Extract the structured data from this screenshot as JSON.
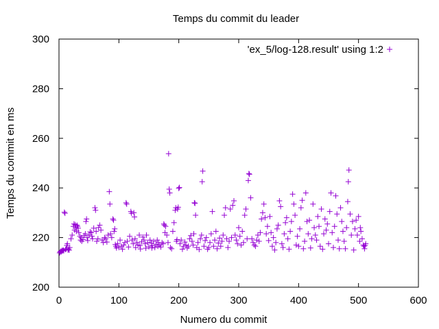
{
  "chart_data": {
    "type": "scatter",
    "title": "Temps du commit du leader",
    "xlabel": "Numero du commit",
    "ylabel": "Temps du commit en ms",
    "xlim": [
      0,
      600
    ],
    "ylim": [
      200,
      300
    ],
    "xticks": [
      0,
      100,
      200,
      300,
      400,
      500,
      600
    ],
    "yticks": [
      200,
      220,
      240,
      260,
      280,
      300
    ],
    "grid": false,
    "legend_position": "top-right",
    "marker": "plus",
    "series": [
      {
        "name": "'ex_5/log-128.result' using 1:2",
        "color": "#9400d3",
        "points": [
          [
            1,
            213.8
          ],
          [
            2,
            214.2
          ],
          [
            3,
            214.5
          ],
          [
            4,
            214.3
          ],
          [
            5,
            214.8
          ],
          [
            6,
            214.6
          ],
          [
            7,
            215.0
          ],
          [
            8,
            214.7
          ],
          [
            9,
            230.2
          ],
          [
            10,
            229.8
          ],
          [
            11,
            215.2
          ],
          [
            12,
            215.5
          ],
          [
            13,
            216.8
          ],
          [
            14,
            217.5
          ],
          [
            15,
            215.0
          ],
          [
            16,
            215.4
          ],
          [
            17,
            214.9
          ],
          [
            18,
            216.0
          ],
          [
            20,
            219.5
          ],
          [
            22,
            221.0
          ],
          [
            24,
            224.5
          ],
          [
            25,
            225.5
          ],
          [
            26,
            223.0
          ],
          [
            27,
            225.2
          ],
          [
            28,
            224.0
          ],
          [
            29,
            222.5
          ],
          [
            30,
            225.0
          ],
          [
            31,
            224.5
          ],
          [
            32,
            223.8
          ],
          [
            33,
            222.0
          ],
          [
            35,
            220.5
          ],
          [
            36,
            219.0
          ],
          [
            37,
            220.0
          ],
          [
            38,
            218.5
          ],
          [
            40,
            219.2
          ],
          [
            42,
            220.8
          ],
          [
            44,
            221.5
          ],
          [
            45,
            226.5
          ],
          [
            46,
            227.5
          ],
          [
            47,
            220.0
          ],
          [
            48,
            218.8
          ],
          [
            50,
            221.0
          ],
          [
            52,
            222.3
          ],
          [
            54,
            222.0
          ],
          [
            55,
            220.5
          ],
          [
            56,
            219.5
          ],
          [
            58,
            223.8
          ],
          [
            60,
            232.0
          ],
          [
            61,
            231.0
          ],
          [
            62,
            222.5
          ],
          [
            63,
            218.5
          ],
          [
            65,
            219.5
          ],
          [
            66,
            224.0
          ],
          [
            68,
            225.0
          ],
          [
            70,
            223.0
          ],
          [
            72,
            219.0
          ],
          [
            74,
            218.0
          ],
          [
            76,
            220.0
          ],
          [
            78,
            219.5
          ],
          [
            80,
            218.2
          ],
          [
            82,
            221.0
          ],
          [
            84,
            238.5
          ],
          [
            85,
            233.5
          ],
          [
            86,
            221.5
          ],
          [
            88,
            220.0
          ],
          [
            90,
            227.5
          ],
          [
            91,
            227.0
          ],
          [
            92,
            222.5
          ],
          [
            93,
            223.5
          ],
          [
            94,
            217.2
          ],
          [
            95,
            216.5
          ],
          [
            96,
            215.8
          ],
          [
            98,
            217.5
          ],
          [
            100,
            216.0
          ],
          [
            102,
            219.0
          ],
          [
            104,
            216.5
          ],
          [
            106,
            215.3
          ],
          [
            108,
            217.0
          ],
          [
            110,
            218.0
          ],
          [
            112,
            234.0
          ],
          [
            113,
            233.5
          ],
          [
            114,
            218.5
          ],
          [
            116,
            216.2
          ],
          [
            118,
            220.5
          ],
          [
            120,
            230.5
          ],
          [
            121,
            229.8
          ],
          [
            122,
            219.0
          ],
          [
            124,
            217.5
          ],
          [
            125,
            230.0
          ],
          [
            126,
            228.3
          ],
          [
            127,
            219.5
          ],
          [
            128,
            216.0
          ],
          [
            130,
            218.0
          ],
          [
            132,
            217.0
          ],
          [
            134,
            221.0
          ],
          [
            135,
            216.8
          ],
          [
            136,
            215.4
          ],
          [
            138,
            218.3
          ],
          [
            140,
            220.2
          ],
          [
            142,
            219.0
          ],
          [
            144,
            217.5
          ],
          [
            145,
            215.7
          ],
          [
            146,
            221.0
          ],
          [
            148,
            218.0
          ],
          [
            150,
            216.3
          ],
          [
            152,
            219.0
          ],
          [
            154,
            217.8
          ],
          [
            155,
            215.8
          ],
          [
            156,
            216.7
          ],
          [
            158,
            218.5
          ],
          [
            160,
            216.0
          ],
          [
            162,
            217.3
          ],
          [
            164,
            219.0
          ],
          [
            165,
            216.5
          ],
          [
            166,
            218.0
          ],
          [
            168,
            217.0
          ],
          [
            170,
            216.2
          ],
          [
            172,
            218.0
          ],
          [
            174,
            217.5
          ],
          [
            175,
            225.5
          ],
          [
            176,
            225.0
          ],
          [
            177,
            222.0
          ],
          [
            178,
            224.5
          ],
          [
            180,
            221.0
          ],
          [
            182,
            218.0
          ],
          [
            183,
            253.8
          ],
          [
            184,
            239.5
          ],
          [
            185,
            238.0
          ],
          [
            186,
            216.0
          ],
          [
            188,
            215.5
          ],
          [
            190,
            222.5
          ],
          [
            192,
            226.0
          ],
          [
            194,
            231.0
          ],
          [
            195,
            232.0
          ],
          [
            196,
            218.5
          ],
          [
            197,
            219.2
          ],
          [
            198,
            231.5
          ],
          [
            199,
            232.2
          ],
          [
            200,
            239.8
          ],
          [
            201,
            240.2
          ],
          [
            202,
            217.5
          ],
          [
            204,
            219.0
          ],
          [
            206,
            215.3
          ],
          [
            208,
            216.5
          ],
          [
            210,
            218.2
          ],
          [
            212,
            217.0
          ],
          [
            214,
            215.8
          ],
          [
            216,
            216.5
          ],
          [
            218,
            219.5
          ],
          [
            220,
            220.8
          ],
          [
            222,
            218.5
          ],
          [
            224,
            217.0
          ],
          [
            225,
            221.5
          ],
          [
            226,
            234.0
          ],
          [
            227,
            233.8
          ],
          [
            228,
            229.0
          ],
          [
            230,
            216.0
          ],
          [
            232,
            218.0
          ],
          [
            234,
            215.2
          ],
          [
            236,
            219.5
          ],
          [
            238,
            221.0
          ],
          [
            239,
            242.5
          ],
          [
            240,
            246.8
          ],
          [
            242,
            216.5
          ],
          [
            244,
            218.8
          ],
          [
            246,
            220.0
          ],
          [
            248,
            215.3
          ],
          [
            250,
            216.0
          ],
          [
            252,
            218.0
          ],
          [
            254,
            221.5
          ],
          [
            256,
            230.5
          ],
          [
            258,
            216.5
          ],
          [
            260,
            219.0
          ],
          [
            262,
            222.5
          ],
          [
            264,
            215.5
          ],
          [
            266,
            217.8
          ],
          [
            268,
            219.8
          ],
          [
            270,
            216.5
          ],
          [
            272,
            218.5
          ],
          [
            274,
            221.0
          ],
          [
            276,
            229.0
          ],
          [
            278,
            232.0
          ],
          [
            280,
            219.5
          ],
          [
            282,
            216.0
          ],
          [
            284,
            218.5
          ],
          [
            286,
            231.5
          ],
          [
            288,
            220.0
          ],
          [
            290,
            233.0
          ],
          [
            292,
            234.8
          ],
          [
            294,
            221.0
          ],
          [
            296,
            219.0
          ],
          [
            298,
            217.5
          ],
          [
            300,
            224.0
          ],
          [
            302,
            220.5
          ],
          [
            304,
            217.0
          ],
          [
            306,
            222.5
          ],
          [
            308,
            218.0
          ],
          [
            310,
            229.0
          ],
          [
            312,
            231.5
          ],
          [
            314,
            219.5
          ],
          [
            316,
            243.0
          ],
          [
            317,
            245.8
          ],
          [
            318,
            245.5
          ],
          [
            320,
            236.0
          ],
          [
            322,
            219.5
          ],
          [
            324,
            218.0
          ],
          [
            326,
            217.0
          ],
          [
            328,
            216.5
          ],
          [
            330,
            219.0
          ],
          [
            332,
            221.0
          ],
          [
            334,
            218.5
          ],
          [
            336,
            222.0
          ],
          [
            338,
            227.5
          ],
          [
            340,
            230.0
          ],
          [
            342,
            233.5
          ],
          [
            344,
            228.0
          ],
          [
            346,
            221.5
          ],
          [
            348,
            224.5
          ],
          [
            350,
            218.8
          ],
          [
            352,
            228.5
          ],
          [
            354,
            222.0
          ],
          [
            356,
            216.5
          ],
          [
            358,
            220.0
          ],
          [
            360,
            215.0
          ],
          [
            362,
            218.0
          ],
          [
            364,
            223.5
          ],
          [
            366,
            225.0
          ],
          [
            368,
            234.8
          ],
          [
            370,
            232.5
          ],
          [
            372,
            217.5
          ],
          [
            374,
            216.0
          ],
          [
            376,
            221.5
          ],
          [
            378,
            226.0
          ],
          [
            380,
            228.0
          ],
          [
            382,
            219.5
          ],
          [
            384,
            215.3
          ],
          [
            386,
            222.5
          ],
          [
            388,
            226.5
          ],
          [
            390,
            237.5
          ],
          [
            392,
            233.5
          ],
          [
            394,
            229.0
          ],
          [
            396,
            217.0
          ],
          [
            398,
            220.5
          ],
          [
            400,
            216.5
          ],
          [
            402,
            223.5
          ],
          [
            404,
            232.0
          ],
          [
            406,
            235.0
          ],
          [
            408,
            215.5
          ],
          [
            410,
            218.5
          ],
          [
            412,
            238.0
          ],
          [
            414,
            226.5
          ],
          [
            416,
            221.5
          ],
          [
            418,
            227.0
          ],
          [
            420,
            215.8
          ],
          [
            422,
            219.5
          ],
          [
            424,
            233.5
          ],
          [
            426,
            224.0
          ],
          [
            428,
            221.0
          ],
          [
            430,
            219.0
          ],
          [
            432,
            228.5
          ],
          [
            434,
            224.5
          ],
          [
            436,
            216.5
          ],
          [
            438,
            231.5
          ],
          [
            440,
            215.3
          ],
          [
            442,
            221.5
          ],
          [
            444,
            227.5
          ],
          [
            446,
            223.0
          ],
          [
            448,
            225.5
          ],
          [
            450,
            217.5
          ],
          [
            452,
            230.5
          ],
          [
            454,
            238.0
          ],
          [
            456,
            222.0
          ],
          [
            458,
            216.0
          ],
          [
            460,
            224.5
          ],
          [
            462,
            236.8
          ],
          [
            464,
            229.5
          ],
          [
            466,
            219.0
          ],
          [
            468,
            215.5
          ],
          [
            470,
            232.0
          ],
          [
            472,
            226.5
          ],
          [
            474,
            222.5
          ],
          [
            476,
            218.5
          ],
          [
            478,
            215.5
          ],
          [
            480,
            224.0
          ],
          [
            482,
            234.5
          ],
          [
            483,
            242.5
          ],
          [
            484,
            247.2
          ],
          [
            486,
            229.5
          ],
          [
            488,
            221.0
          ],
          [
            490,
            226.5
          ],
          [
            492,
            215.0
          ],
          [
            494,
            223.5
          ],
          [
            496,
            227.0
          ],
          [
            498,
            221.0
          ],
          [
            500,
            228.5
          ],
          [
            502,
            218.5
          ],
          [
            503,
            224.0
          ],
          [
            504,
            222.5
          ],
          [
            506,
            219.5
          ],
          [
            508,
            217.0
          ],
          [
            509,
            216.5
          ],
          [
            510,
            215.5
          ],
          [
            511,
            216.8
          ],
          [
            512,
            217.5
          ]
        ]
      }
    ]
  }
}
